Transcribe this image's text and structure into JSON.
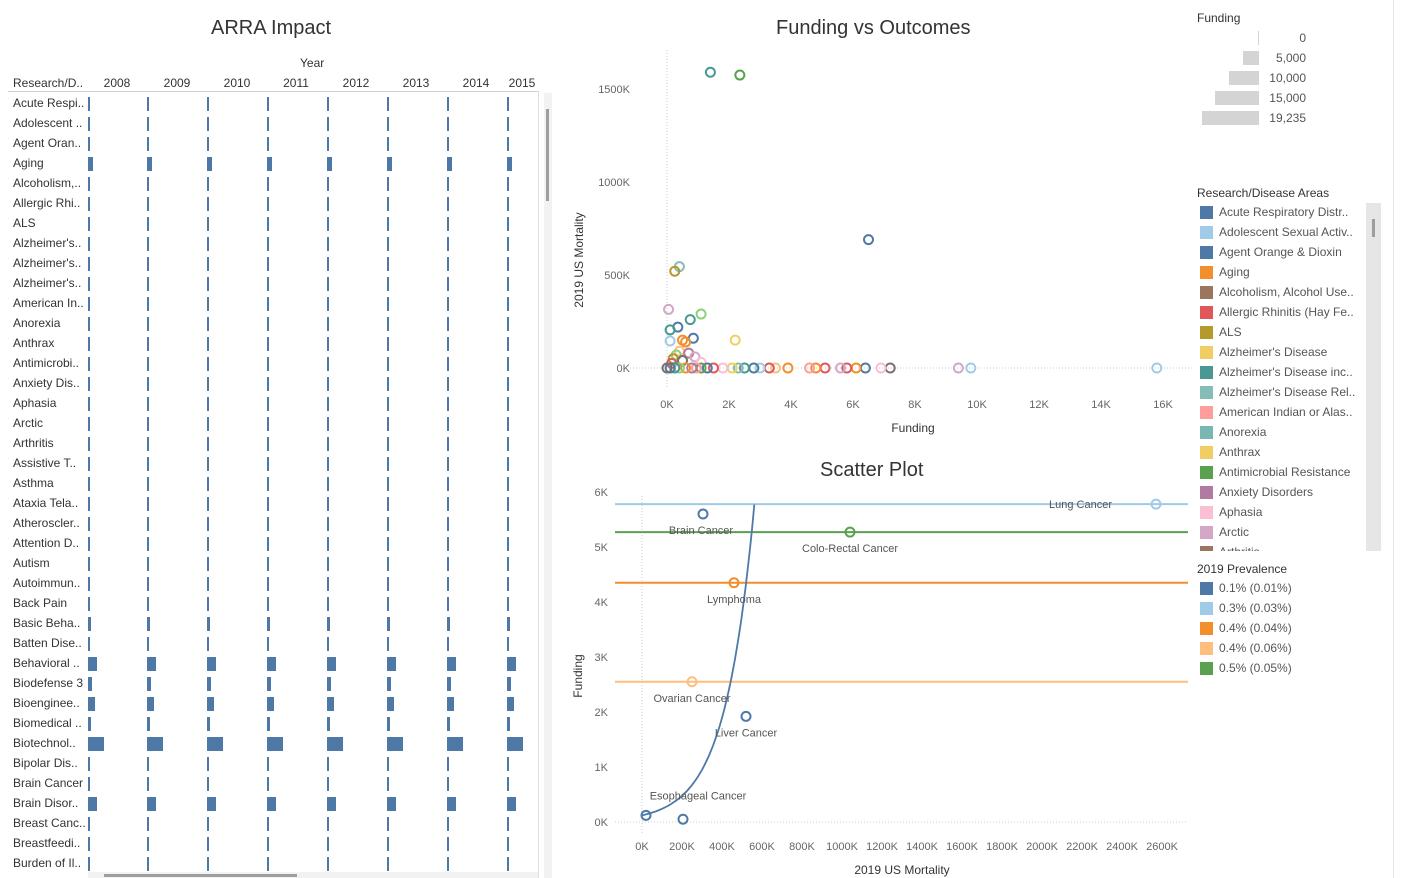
{
  "arra": {
    "title": "ARRA Impact",
    "col_header_top": "Year",
    "row_header": "Research/D..",
    "years": [
      "2008",
      "2009",
      "2010",
      "2011",
      "2012",
      "2013",
      "2014",
      "2015"
    ],
    "rows": [
      {
        "label": "Acute Respi..",
        "w": 1
      },
      {
        "label": "Adolescent ..",
        "w": 1
      },
      {
        "label": "Agent Oran..",
        "w": 1
      },
      {
        "label": "Aging",
        "w": 5
      },
      {
        "label": "Alcoholism,..",
        "w": 1
      },
      {
        "label": "Allergic Rhi..",
        "w": 1
      },
      {
        "label": "ALS",
        "w": 1
      },
      {
        "label": "Alzheimer's..",
        "w": 1
      },
      {
        "label": "Alzheimer's..",
        "w": 1
      },
      {
        "label": "Alzheimer's..",
        "w": 1
      },
      {
        "label": "American In..",
        "w": 1
      },
      {
        "label": "Anorexia",
        "w": 1
      },
      {
        "label": "Anthrax",
        "w": 1
      },
      {
        "label": "Antimicrobi..",
        "w": 1
      },
      {
        "label": "Anxiety Dis..",
        "w": 1
      },
      {
        "label": "Aphasia",
        "w": 1
      },
      {
        "label": "Arctic",
        "w": 1
      },
      {
        "label": "Arthritis",
        "w": 1
      },
      {
        "label": "Assistive T..",
        "w": 1
      },
      {
        "label": "Asthma",
        "w": 1
      },
      {
        "label": "Ataxia Tela..",
        "w": 1
      },
      {
        "label": "Atheroscler..",
        "w": 1
      },
      {
        "label": "Attention D..",
        "w": 1
      },
      {
        "label": "Autism",
        "w": 1
      },
      {
        "label": "Autoimmun..",
        "w": 1
      },
      {
        "label": "Back Pain",
        "w": 1
      },
      {
        "label": "Basic Beha..",
        "w": 3
      },
      {
        "label": "Batten Dise..",
        "w": 1
      },
      {
        "label": "Behavioral ..",
        "w": 9
      },
      {
        "label": "Biodefense 3",
        "w": 4
      },
      {
        "label": "Bioenginee..",
        "w": 7
      },
      {
        "label": "Biomedical ..",
        "w": 3
      },
      {
        "label": "Biotechnol..",
        "w": 16
      },
      {
        "label": "Bipolar Dis..",
        "w": 1
      },
      {
        "label": "Brain Cancer",
        "w": 1
      },
      {
        "label": "Brain Disor..",
        "w": 9
      },
      {
        "label": "Breast Canc..",
        "w": 1
      },
      {
        "label": "Breastfeedi..",
        "w": 1
      },
      {
        "label": "Burden of Il..",
        "w": 1
      }
    ]
  },
  "funding_vs_outcomes": {
    "title": "Funding vs Outcomes",
    "xlabel": "Funding",
    "ylabel": "2019 US Mortality",
    "x_ticks": [
      "0K",
      "2K",
      "4K",
      "6K",
      "8K",
      "10K",
      "12K",
      "14K",
      "16K"
    ],
    "y_ticks": [
      "0K",
      "500K",
      "1000K",
      "1500K"
    ]
  },
  "scatter_plot": {
    "title": "Scatter Plot",
    "xlabel": "2019 US Mortality",
    "ylabel": "Funding",
    "x_ticks": [
      "0K",
      "200K",
      "400K",
      "600K",
      "800K",
      "1000K",
      "1200K",
      "1400K",
      "1600K",
      "1800K",
      "2000K",
      "2200K",
      "2400K",
      "2600K"
    ],
    "y_ticks": [
      "0K",
      "1K",
      "2K",
      "3K",
      "4K",
      "5K",
      "6K"
    ],
    "points": [
      {
        "label": "Lung Cancer",
        "color": "#a0cbe8"
      },
      {
        "label": "Brain Cancer",
        "color": "#4e79a7"
      },
      {
        "label": "Colo-Rectal Cancer",
        "color": "#59a14f"
      },
      {
        "label": "Lymphoma",
        "color": "#f28e2b"
      },
      {
        "label": "Ovarian Cancer",
        "color": "#ffbe7d"
      },
      {
        "label": "Liver Cancer",
        "color": "#4e79a7"
      },
      {
        "label": "Esophageal Cancer",
        "color": "#4e79a7"
      }
    ]
  },
  "size_legend": {
    "title": "Funding",
    "items": [
      "0",
      "5,000",
      "10,000",
      "15,000",
      "19,235"
    ]
  },
  "areas_legend": {
    "title": "Research/Disease Areas",
    "items": [
      {
        "label": "Acute Respiratory Distr..",
        "color": "#4e79a7"
      },
      {
        "label": "Adolescent Sexual Activ..",
        "color": "#a0cbe8"
      },
      {
        "label": "Agent Orange & Dioxin",
        "color": "#4e79a7"
      },
      {
        "label": "Aging",
        "color": "#f28e2b"
      },
      {
        "label": "Alcoholism, Alcohol Use..",
        "color": "#9c755f"
      },
      {
        "label": "Allergic Rhinitis (Hay Fe..",
        "color": "#e15759"
      },
      {
        "label": "ALS",
        "color": "#b6992d"
      },
      {
        "label": "Alzheimer's Disease",
        "color": "#f1ce63"
      },
      {
        "label": "Alzheimer's Disease inc..",
        "color": "#499894"
      },
      {
        "label": "Alzheimer's Disease Rel..",
        "color": "#86bcb6"
      },
      {
        "label": "American Indian or Alas..",
        "color": "#ff9d9a"
      },
      {
        "label": "Anorexia",
        "color": "#79b7b2"
      },
      {
        "label": "Anthrax",
        "color": "#f1ce63"
      },
      {
        "label": "Antimicrobial Resistance",
        "color": "#59a14f"
      },
      {
        "label": "Anxiety Disorders",
        "color": "#b07aa1"
      },
      {
        "label": "Aphasia",
        "color": "#fabfd2"
      },
      {
        "label": "Arctic",
        "color": "#d4a6c8"
      },
      {
        "label": "Arthritis",
        "color": "#9c755f"
      }
    ]
  },
  "prevalence_legend": {
    "title": "2019  Prevalence",
    "items": [
      {
        "label": "0.1% (0.01%)",
        "color": "#4e79a7"
      },
      {
        "label": "0.3% (0.03%)",
        "color": "#a0cbe8"
      },
      {
        "label": "0.4% (0.04%)",
        "color": "#f28e2b"
      },
      {
        "label": "0.4% (0.06%)",
        "color": "#ffbe7d"
      },
      {
        "label": "0.5% (0.05%)",
        "color": "#59a14f"
      }
    ]
  }
}
